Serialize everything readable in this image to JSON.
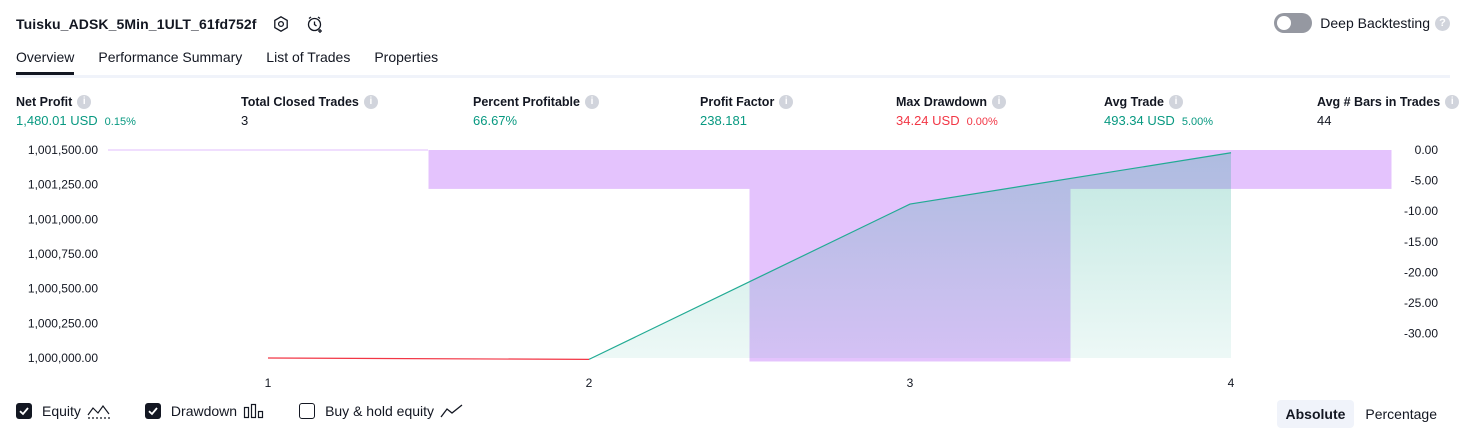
{
  "header": {
    "title": "Tuisku_ADSK_5Min_1ULT_61fd752f"
  },
  "deep_backtesting": {
    "label": "Deep Backtesting",
    "enabled": false
  },
  "tabs": [
    {
      "label": "Overview"
    },
    {
      "label": "Performance Summary"
    },
    {
      "label": "List of Trades"
    },
    {
      "label": "Properties"
    }
  ],
  "metrics": [
    {
      "label": "Net Profit",
      "value": "1,480.01 USD",
      "pct": "0.15%"
    },
    {
      "label": "Total Closed Trades",
      "value": "3"
    },
    {
      "label": "Percent Profitable",
      "value": "66.67%"
    },
    {
      "label": "Profit Factor",
      "value": "238.181"
    },
    {
      "label": "Max Drawdown",
      "value": "34.24 USD",
      "pct": "0.00%"
    },
    {
      "label": "Avg Trade",
      "value": "493.34 USD",
      "pct": "5.00%"
    },
    {
      "label": "Avg # Bars in Trades",
      "value": "44"
    }
  ],
  "chart_data": {
    "type": "area",
    "x": [
      1,
      2,
      3,
      4
    ],
    "x_tick_labels": [
      "1",
      "2",
      "3",
      "4"
    ],
    "y_left_ticks": [
      "1,001,500.00",
      "1,001,250.00",
      "1,001,000.00",
      "1,000,750.00",
      "1,000,500.00",
      "1,000,250.00",
      "1,000,000.00"
    ],
    "y_left_range": [
      1000000,
      1001500
    ],
    "y_right_ticks": [
      "0.00",
      "-5.00",
      "-10.00",
      "-15.00",
      "-20.00",
      "-25.00",
      "-30.00"
    ],
    "y_right_range": [
      -34,
      0
    ],
    "series": [
      {
        "name": "Equity",
        "values": [
          1000000,
          999990,
          1001110,
          1001480
        ],
        "color": "#22ab94"
      },
      {
        "name": "Drawdown",
        "type": "bar",
        "values": [
          0,
          -6.3,
          -34.24,
          -6.3
        ],
        "color": "#e1bdfd"
      }
    ]
  },
  "legend": {
    "equity": "Equity",
    "drawdown": "Drawdown",
    "buy_hold": "Buy & hold equity"
  },
  "modes": {
    "absolute": "Absolute",
    "percentage": "Percentage"
  },
  "colors": {
    "positive": "#089981",
    "negative": "#f23645",
    "equity": "#22ab94",
    "drawdown": "#e1bdfd"
  }
}
